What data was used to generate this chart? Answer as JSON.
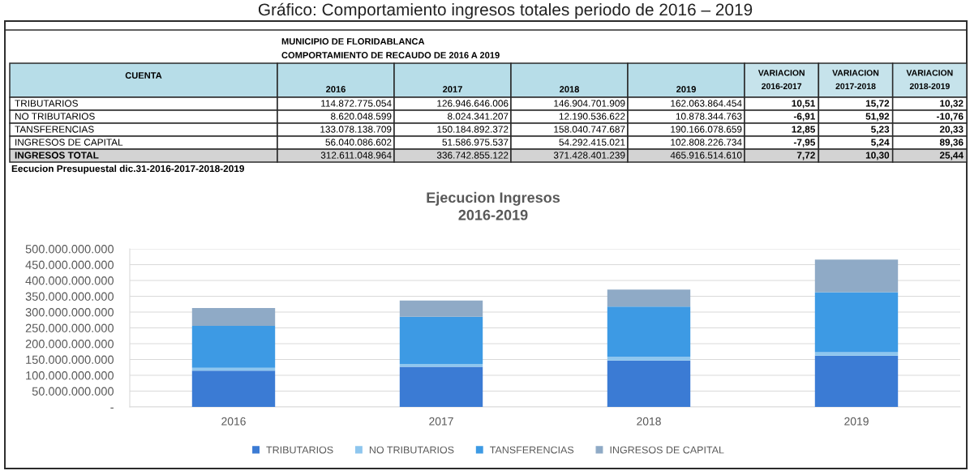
{
  "chart_data": {
    "type": "bar",
    "stacked": true,
    "title": "Ejecucion Ingresos\n2016-2019",
    "categories": [
      "2016",
      "2017",
      "2018",
      "2019"
    ],
    "series": [
      {
        "name": "TRIBUTARIOS",
        "color": "#3b7bd4",
        "values": [
          114872775054,
          126946646006,
          146904701909,
          162063864454
        ]
      },
      {
        "name": "NO TRIBUTARIOS",
        "color": "#8ec6ee",
        "values": [
          8620048599,
          8024341207,
          12190536622,
          10878344763
        ]
      },
      {
        "name": "TANSFERENCIAS",
        "color": "#3d9ae4",
        "values": [
          133078138709,
          150184892372,
          158040747687,
          190166078659
        ]
      },
      {
        "name": "INGRESOS DE CAPITAL",
        "color": "#8faac6",
        "values": [
          56040086602,
          51586975537,
          54292415021,
          102808226734
        ]
      }
    ],
    "ylim": [
      0,
      500000000000
    ],
    "yticks": [
      {
        "value": 0,
        "label": "-"
      },
      {
        "value": 50000000000,
        "label": "50.000.000.000"
      },
      {
        "value": 100000000000,
        "label": "100.000.000.000"
      },
      {
        "value": 150000000000,
        "label": "150.000.000.000"
      },
      {
        "value": 200000000000,
        "label": "200.000.000.000"
      },
      {
        "value": 250000000000,
        "label": "250.000.000.000"
      },
      {
        "value": 300000000000,
        "label": "300.000.000.000"
      },
      {
        "value": 350000000000,
        "label": "350.000.000.000"
      },
      {
        "value": 400000000000,
        "label": "400.000.000.000"
      },
      {
        "value": 450000000000,
        "label": "450.000.000.000"
      },
      {
        "value": 500000000000,
        "label": "500.000.000.000"
      }
    ],
    "grid": "y",
    "legend": "bottom",
    "annotations": [
      "Gráfico: Comportamiento ingresos totales periodo de 2016 – 2019",
      "MUNICIPIO DE FLORIDABLANCA",
      "COMPORTAMIENTO DE RECAUDO DE 2016 A 2019",
      "CUENTA",
      "INGRESOS TOTAL",
      "VARIACION\n2016-2017",
      "VARIACION\n2017-2018",
      "VARIACION\n2018-2019",
      "114.872.775.054",
      "126.946.646.006",
      "146.904.701.909",
      "162.063.864.454",
      "10,51",
      "15,72",
      "10,32",
      "8.620.048.599",
      "8.024.341.207",
      "12.190.536.622",
      "10.878.344.763",
      "-6,91",
      "51,92",
      "-10,76",
      "133.078.138.709",
      "150.184.892.372",
      "158.040.747.687",
      "190.166.078.659",
      "12,85",
      "5,23",
      "20,33",
      "56.040.086.602",
      "51.586.975.537",
      "54.292.415.021",
      "102.808.226.734",
      "-7,95",
      "5,24",
      "89,36",
      "312.611.048.964",
      "336.742.855.122",
      "371.428.401.239",
      "465.916.514.610",
      "7,72",
      "10,30",
      "25,44",
      "Eecucion Presupuestal dic.31-2016-2017-2018-2019"
    ]
  }
}
